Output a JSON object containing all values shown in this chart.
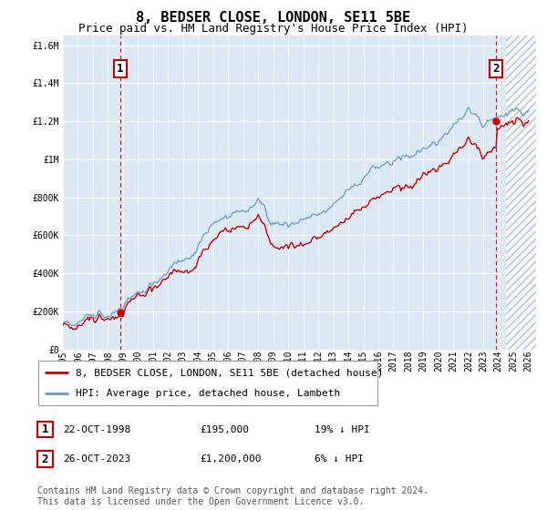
{
  "title": "8, BEDSER CLOSE, LONDON, SE11 5BE",
  "subtitle": "Price paid vs. HM Land Registry's House Price Index (HPI)",
  "background_color": "#ffffff",
  "plot_bg_color": "#dce9f5",
  "grid_color": "#ffffff",
  "ylim": [
    0,
    1650000
  ],
  "yticks": [
    0,
    200000,
    400000,
    600000,
    800000,
    1000000,
    1200000,
    1400000,
    1600000
  ],
  "ytick_labels": [
    "£0",
    "£200K",
    "£400K",
    "£600K",
    "£800K",
    "£1M",
    "£1.2M",
    "£1.4M",
    "£1.6M"
  ],
  "xlim_min": 1995,
  "xlim_max": 2026.5,
  "hatch_start": 2024.5,
  "sale1_date_x": 1998.81,
  "sale1_price": 195000,
  "sale1_label": "1",
  "sale2_date_x": 2023.81,
  "sale2_price": 1200000,
  "sale2_label": "2",
  "red_line_color": "#cc0000",
  "blue_line_color": "#6699cc",
  "dashed_line_color": "#cc0000",
  "legend_red_label": "8, BEDSER CLOSE, LONDON, SE11 5BE (detached house)",
  "legend_blue_label": "HPI: Average price, detached house, Lambeth",
  "table_row1": [
    "1",
    "22-OCT-1998",
    "£195,000",
    "19% ↓ HPI"
  ],
  "table_row2": [
    "2",
    "26-OCT-2023",
    "£1,200,000",
    "6% ↓ HPI"
  ],
  "footer": "Contains HM Land Registry data © Crown copyright and database right 2024.\nThis data is licensed under the Open Government Licence v3.0.",
  "title_fontsize": 11,
  "subtitle_fontsize": 9,
  "tick_fontsize": 7,
  "legend_fontsize": 8,
  "table_fontsize": 8,
  "footer_fontsize": 7
}
